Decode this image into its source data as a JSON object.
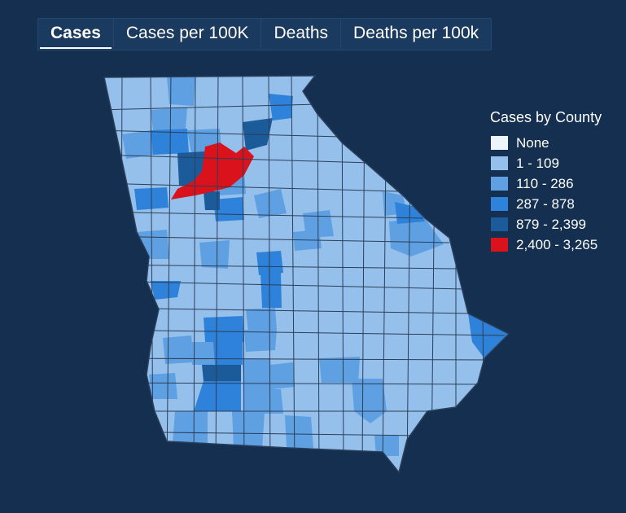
{
  "tabs": [
    {
      "label": "Cases",
      "active": true
    },
    {
      "label": "Cases per 100K",
      "active": false
    },
    {
      "label": "Deaths",
      "active": false
    },
    {
      "label": "Deaths per 100k",
      "active": false
    }
  ],
  "legend": {
    "title": "Cases by County",
    "items": [
      {
        "label": "None",
        "color": "#eef4fb"
      },
      {
        "label": "1 - 109",
        "color": "#94c0eb"
      },
      {
        "label": "110 - 286",
        "color": "#5fa0e2"
      },
      {
        "label": "287 - 878",
        "color": "#2f82d9"
      },
      {
        "label": "879 - 2,399",
        "color": "#1c5b99"
      },
      {
        "label": "2,400 - 3,265",
        "color": "#d9121b"
      }
    ]
  },
  "map": {
    "region": "Georgia",
    "border_color": "#2b3f5a",
    "base_color": "#94c0eb"
  }
}
